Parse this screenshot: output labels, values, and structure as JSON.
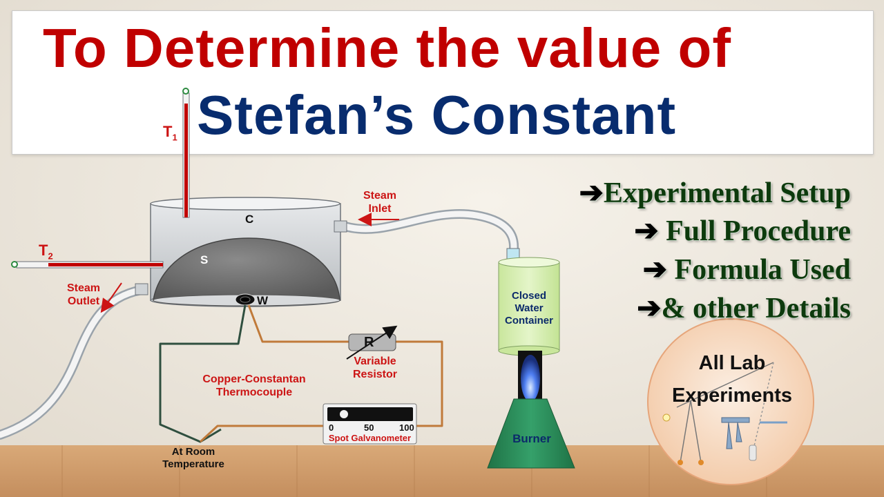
{
  "title": {
    "line1": "To Determine the value of",
    "line2": "Stefan’s Constant"
  },
  "bullets": [
    {
      "arrow": "➔",
      "text": "Experimental Setup"
    },
    {
      "arrow": "➔",
      "text": " Full Procedure"
    },
    {
      "arrow": "➔",
      "text": " Formula Used"
    },
    {
      "arrow": "➔",
      "text": "& other Details"
    }
  ],
  "badge": {
    "line1": "All Lab",
    "line2": "Experiments"
  },
  "labels": {
    "t1": "T",
    "t1_sub": "1",
    "t2": "T",
    "t2_sub": "2",
    "c": "C",
    "s": "S",
    "w": "W",
    "steam_inlet_1": "Steam",
    "steam_inlet_2": "Inlet",
    "steam_outlet_1": "Steam",
    "steam_outlet_2": "Outlet",
    "container_1": "Closed",
    "container_2": "Water",
    "container_3": "Container",
    "burner": "Burner",
    "resistor_symbol": "R",
    "resistor_1": "Variable",
    "resistor_2": "Resistor",
    "thermocouple_1": "Copper-Constantan",
    "thermocouple_2": "Thermocouple",
    "room_1": "At Room",
    "room_2": "Temperature",
    "galv_scale_0": "0",
    "galv_scale_50": "50",
    "galv_scale_100": "100",
    "galvanometer": "Spot Galvanometer"
  },
  "colors": {
    "title_red": "#c00000",
    "title_blue": "#082c6e",
    "bullet_green": "#0d3a0d",
    "label_red": "#cc1414",
    "copper_wire": "#c07a3a",
    "constantan_wire": "#2f4f3f",
    "burner_green": "#2c8a58",
    "container_green": "#d7efb4"
  }
}
